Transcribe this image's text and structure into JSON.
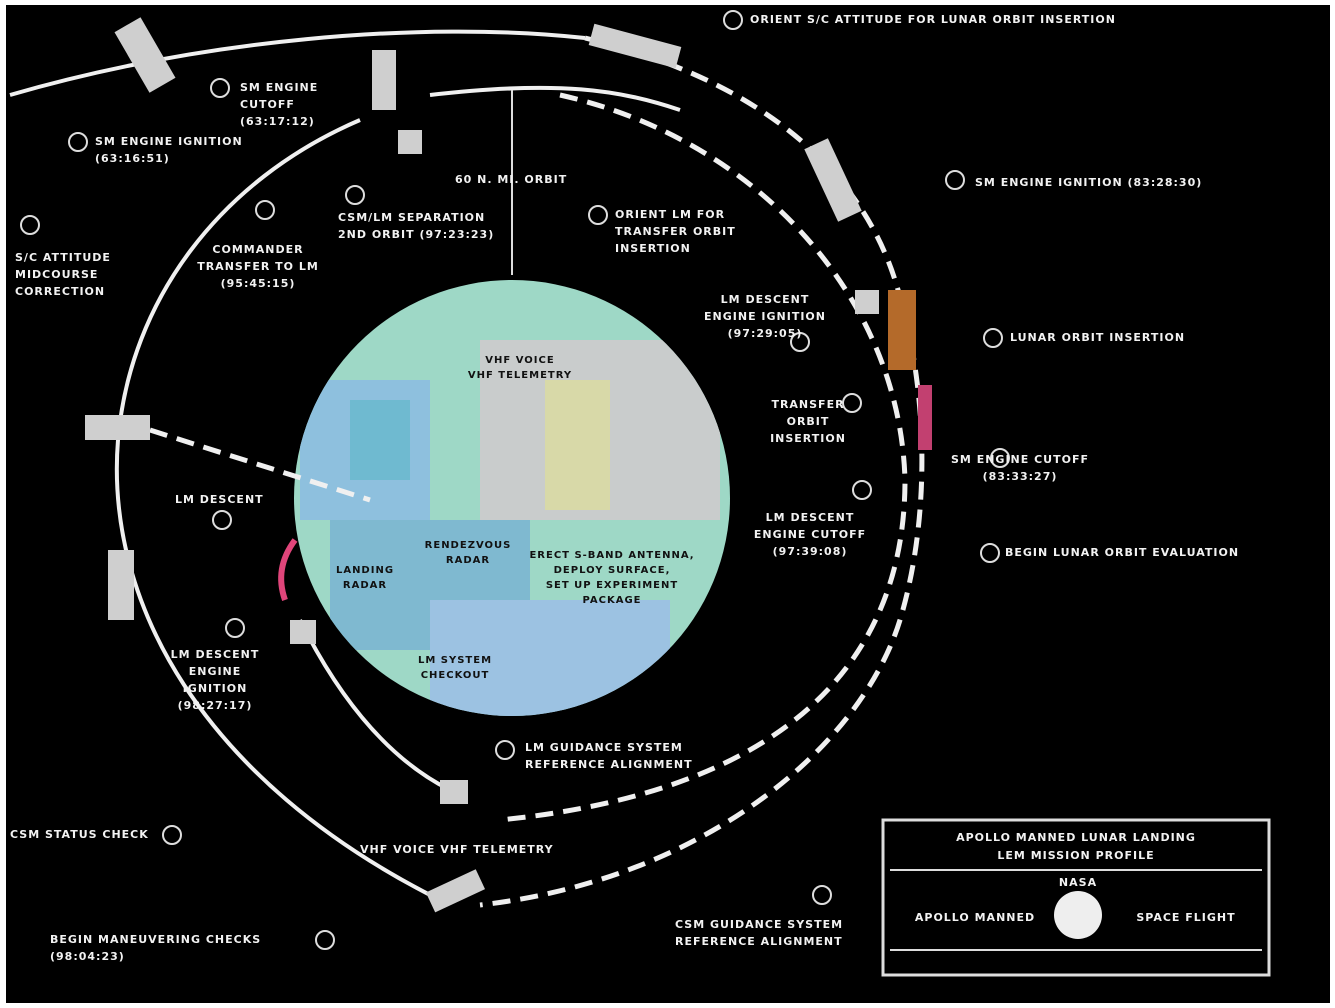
{
  "labels": [
    {
      "lines": [
        "ORIENT S/C ATTITUDE FOR LUNAR ORBIT INSERTION"
      ]
    },
    {
      "lines": [
        "SM ENGINE IGNITION (83:28:30)"
      ]
    },
    {
      "lines": [
        "LUNAR ORBIT INSERTION"
      ]
    },
    {
      "lines": [
        "SM ENGINE CUTOFF",
        "(83:33:27)"
      ]
    },
    {
      "lines": [
        "BEGIN LUNAR ORBIT EVALUATION"
      ]
    },
    {
      "lines": [
        "SM ENGINE",
        "CUTOFF",
        "(63:17:12)"
      ]
    },
    {
      "lines": [
        "SM ENGINE IGNITION",
        "(63:16:51)"
      ]
    },
    {
      "lines": [
        "S/C ATTITUDE",
        "MIDCOURSE",
        "CORRECTION"
      ]
    },
    {
      "lines": [
        "COMMANDER",
        "TRANSFER TO LM",
        "(95:45:15)"
      ]
    },
    {
      "lines": [
        "CSM/LM SEPARATION",
        "2ND ORBIT (97:23:23)"
      ]
    },
    {
      "lines": [
        "60 N. MI. ORBIT"
      ]
    },
    {
      "lines": [
        "ORIENT LM FOR",
        "TRANSFER ORBIT",
        "INSERTION"
      ]
    },
    {
      "lines": [
        "LM DESCENT",
        "ENGINE IGNITION",
        "(97:29:05)"
      ]
    },
    {
      "lines": [
        "TRANSFER",
        "ORBIT",
        "INSERTION"
      ]
    },
    {
      "lines": [
        "LM DESCENT",
        "ENGINE CUTOFF",
        "(97:39:08)"
      ]
    },
    {
      "lines": [
        "LM DESCENT"
      ]
    },
    {
      "lines": [
        "LM DESCENT",
        "ENGINE",
        "IGNITION",
        "(98:27:17)"
      ]
    },
    {
      "lines": [
        "LM GUIDANCE SYSTEM",
        "REFERENCE ALIGNMENT"
      ]
    },
    {
      "lines": [
        "CSM STATUS CHECK"
      ]
    },
    {
      "lines": [
        "VHF VOICE     VHF TELEMETRY"
      ]
    },
    {
      "lines": [
        "BEGIN MANEUVERING CHECKS",
        "(98:04:23)"
      ]
    },
    {
      "lines": [
        "CSM GUIDANCE SYSTEM",
        "REFERENCE ALIGNMENT"
      ]
    }
  ],
  "moon_labels": [
    {
      "lines": [
        "VHF VOICE",
        "VHF TELEMETRY"
      ]
    },
    {
      "lines": [
        "RENDEZVOUS",
        "RADAR"
      ]
    },
    {
      "lines": [
        "LANDING",
        "RADAR"
      ]
    },
    {
      "lines": [
        "ERECT S-BAND ANTENNA,",
        "DEPLOY SURFACE,",
        "SET UP EXPERIMENT",
        "PACKAGE"
      ]
    },
    {
      "lines": [
        "LM SYSTEM",
        "CHECKOUT"
      ]
    }
  ],
  "legend_box": {
    "title": [
      "APOLLO MANNED LUNAR LANDING",
      "LEM MISSION PROFILE"
    ],
    "logo": "NASA",
    "left": "APOLLO MANNED",
    "right": "SPACE FLIGHT"
  }
}
